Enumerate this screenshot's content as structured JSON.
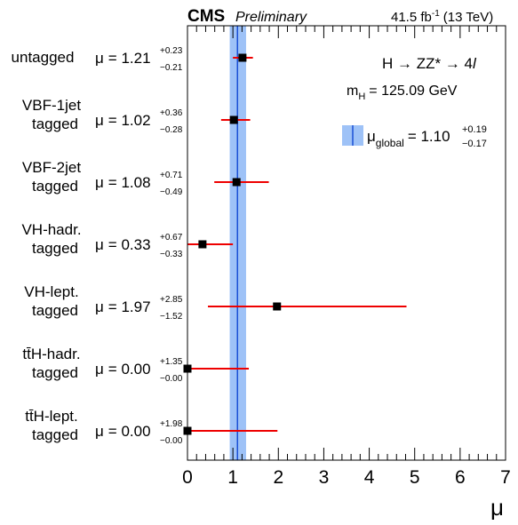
{
  "header": {
    "experiment": "CMS",
    "status": "Preliminary",
    "luminosity": "41.5 fb",
    "lumi_exp": "-1",
    "energy": "(13 TeV)"
  },
  "annotations": {
    "process": "H → ZZ* → 4",
    "process_l": "l",
    "mass_label": "m",
    "mass_sub": "H",
    "mass_value": "= 125.09 GeV"
  },
  "global_legend": {
    "mu": "μ",
    "sub": "global",
    "value": "= 1.10",
    "up": "+0.19",
    "down": "−0.17",
    "band_color": "#9ec2f7",
    "line_color": "#1a4fd6"
  },
  "chart_data": {
    "type": "scatter",
    "xlabel": "μ",
    "xlim": [
      0,
      7
    ],
    "xticks": [
      "0",
      "1",
      "2",
      "3",
      "4",
      "5",
      "6",
      "7"
    ],
    "global": {
      "value": 1.1,
      "up": 0.19,
      "down": 0.17
    },
    "categories": [
      {
        "label1": "untagged",
        "label2": "",
        "value": 1.21,
        "up": 0.23,
        "down": 0.21,
        "mu": "μ",
        "val_text": "= 1.21",
        "up_text": "+0.23",
        "down_text": "−0.21"
      },
      {
        "label1": "VBF-1jet",
        "label2": "tagged",
        "value": 1.02,
        "up": 0.36,
        "down": 0.28,
        "mu": "μ",
        "val_text": "= 1.02",
        "up_text": "+0.36",
        "down_text": "−0.28"
      },
      {
        "label1": "VBF-2jet",
        "label2": "tagged",
        "value": 1.08,
        "up": 0.71,
        "down": 0.49,
        "mu": "μ",
        "val_text": "= 1.08",
        "up_text": "+0.71",
        "down_text": "−0.49"
      },
      {
        "label1": "VH-hadr.",
        "label2": "tagged",
        "value": 0.33,
        "up": 0.67,
        "down": 0.33,
        "mu": "μ",
        "val_text": "= 0.33",
        "up_text": "+0.67",
        "down_text": "−0.33"
      },
      {
        "label1": "VH-lept.",
        "label2": "tagged",
        "value": 1.97,
        "up": 2.85,
        "down": 1.52,
        "mu": "μ",
        "val_text": "= 1.97",
        "up_text": "+2.85",
        "down_text": "−1.52"
      },
      {
        "label1": "tt̄H-hadr.",
        "label2": "tagged",
        "value": 0.0,
        "up": 1.35,
        "down": 0.0,
        "mu": "μ",
        "val_text": "= 0.00",
        "up_text": "+1.35",
        "down_text": "−0.00"
      },
      {
        "label1": "tt̄H-lept.",
        "label2": "tagged",
        "value": 0.0,
        "up": 1.98,
        "down": 0.0,
        "mu": "μ",
        "val_text": "= 0.00",
        "up_text": "+1.98",
        "down_text": "−0.00"
      }
    ],
    "colors": {
      "marker": "#000000",
      "error_bar": "#ee0000"
    }
  }
}
